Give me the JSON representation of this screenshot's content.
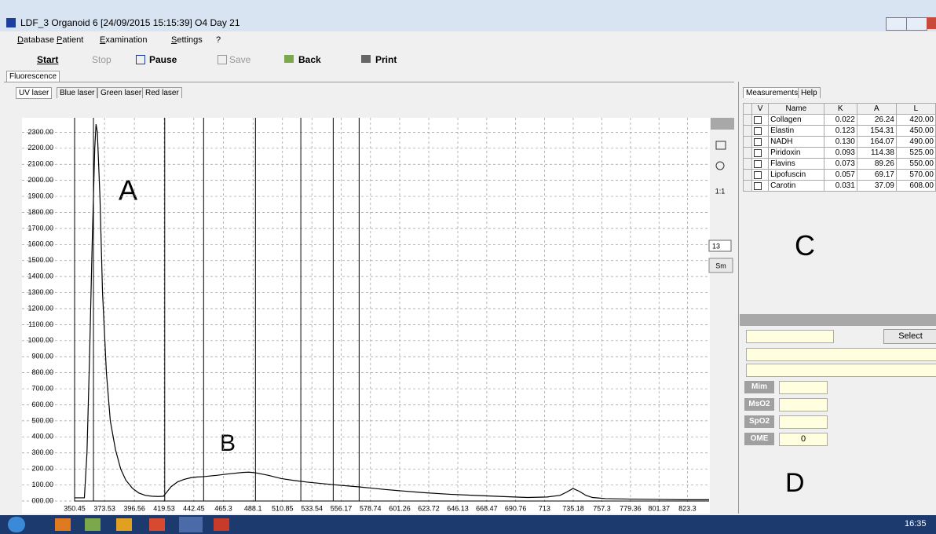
{
  "window": {
    "title": "LDF_3 Organoid 6 [24/09/2015 15:15:39] O4 Day 21"
  },
  "menu": [
    "Database",
    "Patient",
    "Examination",
    "Settings",
    "?"
  ],
  "toolbar": [
    "Start",
    "Stop",
    "Pause",
    "Save",
    "Back",
    "Print"
  ],
  "main_tab": "Fluorescence",
  "laser_tabs": [
    "UV laser",
    "Blue laser",
    "Green laser",
    "Red laser"
  ],
  "side_tools": {
    "zoom_label": "1:1",
    "smooth_value": "13",
    "smooth_button": "Sm"
  },
  "chart_data": {
    "type": "line",
    "color": "#000000",
    "x": [
      350.45,
      355,
      358,
      360,
      362,
      364,
      366,
      367,
      368,
      370,
      372,
      375,
      378,
      382,
      386,
      390,
      395,
      400,
      405,
      410,
      415,
      419,
      422,
      425,
      430,
      435,
      440,
      445,
      450,
      460,
      470,
      480,
      485,
      490,
      500,
      510,
      520,
      530,
      540,
      550,
      560,
      570,
      580,
      590,
      600,
      620,
      640,
      660,
      680,
      700,
      715,
      725,
      730,
      735,
      740,
      745,
      750,
      760,
      780,
      800,
      820,
      840
    ],
    "values": [
      20,
      20,
      20,
      300,
      900,
      1600,
      2200,
      2350,
      2300,
      1900,
      1300,
      800,
      500,
      320,
      200,
      130,
      80,
      50,
      35,
      30,
      28,
      30,
      60,
      90,
      120,
      135,
      145,
      150,
      152,
      160,
      170,
      178,
      180,
      176,
      160,
      140,
      128,
      118,
      110,
      102,
      95,
      88,
      80,
      72,
      65,
      52,
      42,
      35,
      28,
      22,
      25,
      35,
      55,
      78,
      60,
      35,
      22,
      15,
      12,
      10,
      8,
      8
    ],
    "xlim": [
      350.45,
      840
    ],
    "xticks": [
      350.45,
      373.53,
      396.56,
      419.53,
      442.45,
      465.3,
      488.1,
      510.85,
      533.54,
      556.17,
      578.74,
      601.26,
      623.72,
      646.13,
      668.47,
      690.76,
      713,
      735.18,
      757.3,
      779.36,
      801.37,
      823.3
    ],
    "ylim": [
      0,
      2390
    ],
    "yticks": [
      {
        "value": 0,
        "label": "000.00"
      },
      {
        "value": 100,
        "label": "100.00"
      },
      {
        "value": 200,
        "label": "200.00"
      },
      {
        "value": 300,
        "label": "300.00"
      },
      {
        "value": 400,
        "label": "400.00"
      },
      {
        "value": 500,
        "label": "500.00"
      },
      {
        "value": 600,
        "label": "600.00"
      },
      {
        "value": 700,
        "label": "700.00"
      },
      {
        "value": 800,
        "label": "800.00"
      },
      {
        "value": 900,
        "label": "900.00"
      },
      {
        "value": 1000,
        "label": "1000.00"
      },
      {
        "value": 1100,
        "label": "1100.00"
      },
      {
        "value": 1200,
        "label": "1200.00"
      },
      {
        "value": 1300,
        "label": "1300.00"
      },
      {
        "value": 1400,
        "label": "1400.00"
      },
      {
        "value": 1500,
        "label": "1500.00"
      },
      {
        "value": 1600,
        "label": "1600.00"
      },
      {
        "value": 1700,
        "label": "1700.00"
      },
      {
        "value": 1800,
        "label": "1800.00"
      },
      {
        "value": 1900,
        "label": "1900.00"
      },
      {
        "value": 2000,
        "label": "2000.00"
      },
      {
        "value": 2100,
        "label": "2100.00"
      },
      {
        "value": 2200,
        "label": "2200.00"
      },
      {
        "value": 2300,
        "label": "2300.00"
      }
    ],
    "vlines": [
      365,
      420,
      450,
      490,
      525,
      550,
      570
    ],
    "grid": true,
    "annotations": [
      "A",
      "B"
    ]
  },
  "panel": {
    "tabs": [
      "Measurements",
      "Help"
    ],
    "label": "C",
    "table": {
      "headers": [
        "V",
        "Name",
        "K",
        "A",
        "L"
      ],
      "rows": [
        [
          "Collagen",
          "0.022",
          "26.24",
          "420.00"
        ],
        [
          "Elastin",
          "0.123",
          "154.31",
          "450.00"
        ],
        [
          "NADH",
          "0.130",
          "164.07",
          "490.00"
        ],
        [
          "Piridoxin",
          "0.093",
          "114.38",
          "525.00"
        ],
        [
          "Flavins",
          "0.073",
          "89.26",
          "550.00"
        ],
        [
          "Lipofuscin",
          "0.057",
          "69.17",
          "570.00"
        ],
        [
          "Carotin",
          "0.031",
          "37.09",
          "608.00"
        ]
      ]
    }
  },
  "params": {
    "select": "Select",
    "labels": [
      "Mim",
      "MsO2",
      "SpO2",
      "OME"
    ],
    "ome_value": "0",
    "label": "D"
  },
  "taskbar": {
    "time": "16:35"
  }
}
